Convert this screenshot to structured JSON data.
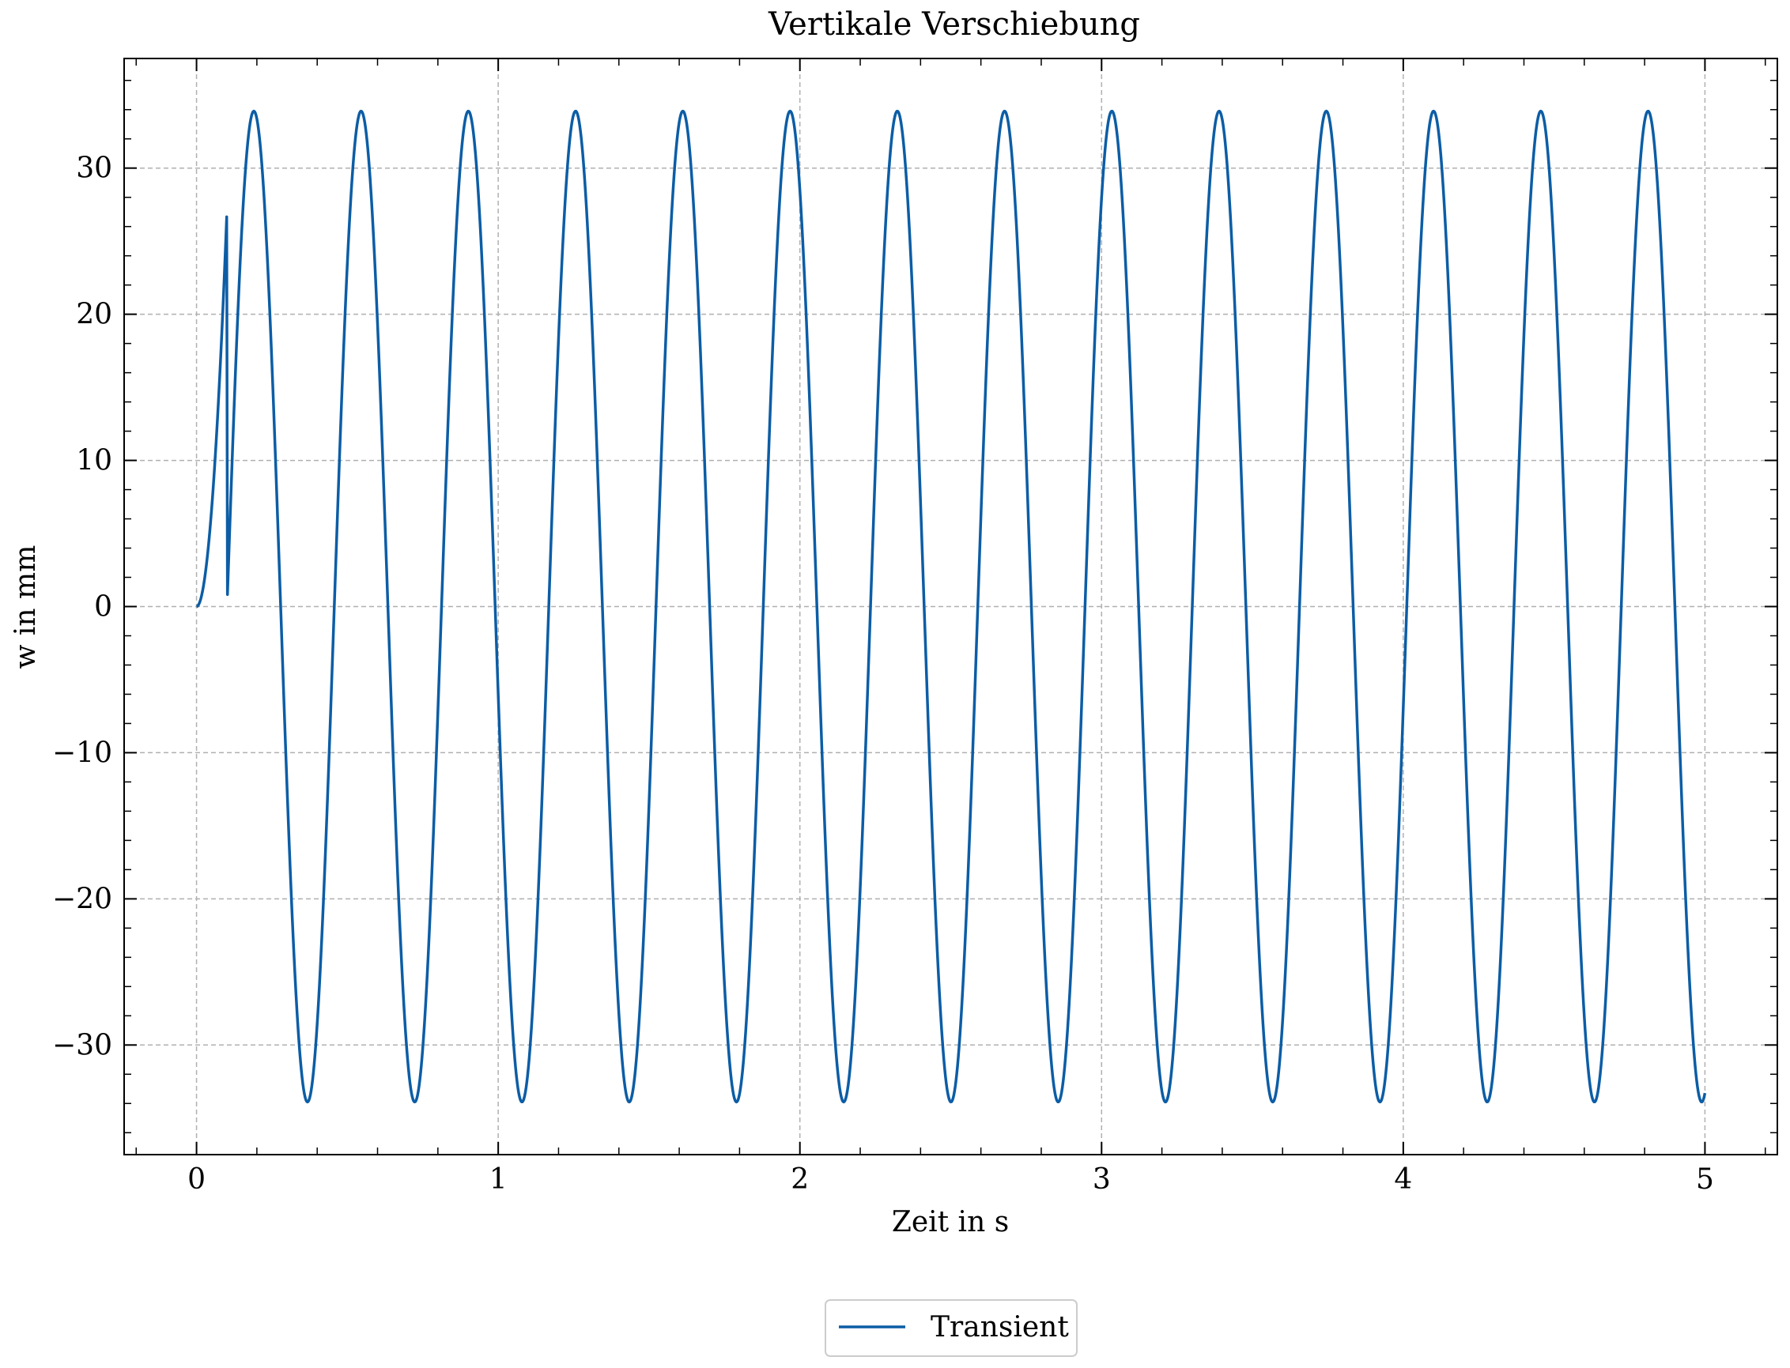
{
  "chart_data": {
    "type": "line",
    "title": "Vertikale Verschiebung",
    "xlabel": "Zeit in s",
    "ylabel": "w in mm",
    "xlim": [
      -0.24,
      5.24
    ],
    "ylim": [
      -37.5,
      37.5
    ],
    "x_ticks": [
      0,
      1,
      2,
      3,
      4,
      5
    ],
    "x_tick_labels": [
      "0",
      "1",
      "2",
      "3",
      "4",
      "5"
    ],
    "y_ticks": [
      -30,
      -20,
      -10,
      0,
      10,
      20,
      30
    ],
    "y_tick_labels": [
      "−30",
      "−20",
      "−10",
      "0",
      "10",
      "20",
      "30"
    ],
    "grid": true,
    "legend_position": "bottom-center, below axes",
    "series": [
      {
        "name": "Transient",
        "color": "#0C5DA5",
        "model": {
          "kind": "sinusoid with smooth start",
          "amplitude": 33.9,
          "period": 0.3555,
          "peak_times": [
            0.19,
            0.55,
            0.9,
            1.26,
            1.62,
            1.97,
            2.33,
            2.69,
            3.04,
            3.4,
            3.76,
            4.11,
            4.47,
            4.82
          ],
          "trough_times": [
            0.37,
            0.73,
            1.08,
            1.44,
            1.79,
            2.15,
            2.51,
            2.86,
            3.22,
            3.58,
            3.93,
            4.29,
            4.65
          ],
          "x_start": 0,
          "x_end": 5,
          "y_at_start": 0,
          "y_at_end": -32.2
        }
      }
    ]
  }
}
